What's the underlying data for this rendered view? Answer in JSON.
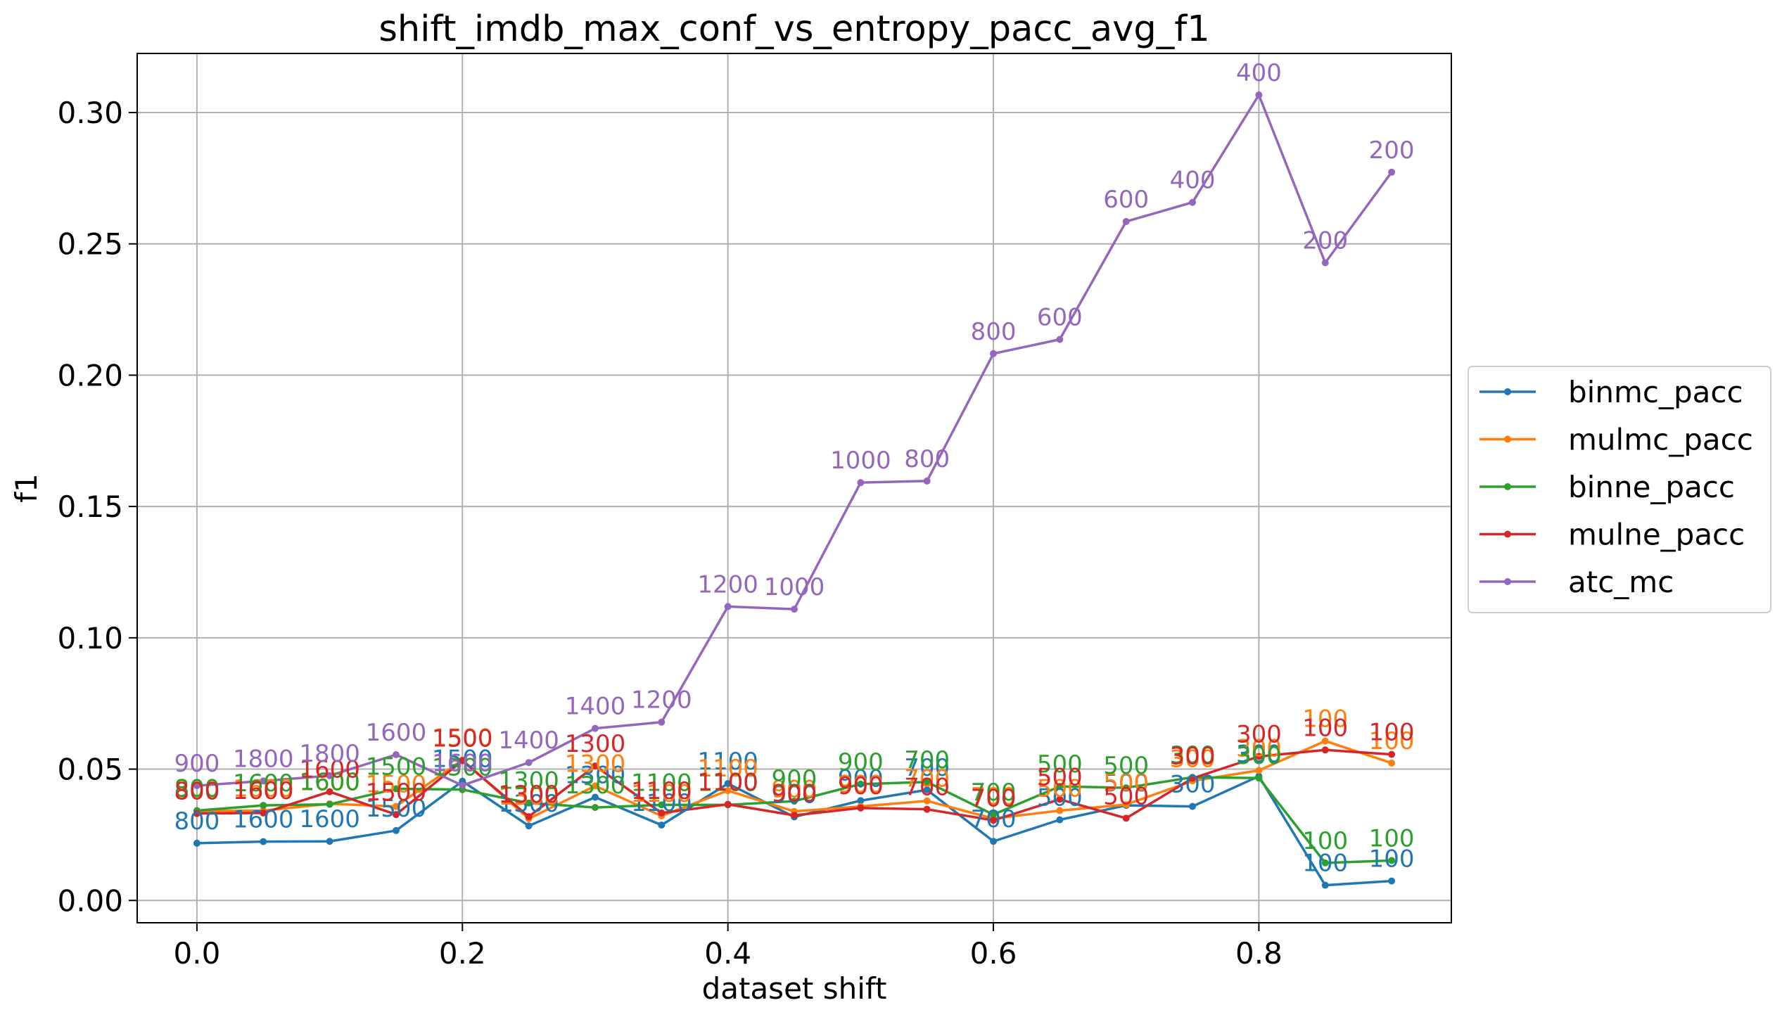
{
  "chart_data": {
    "type": "line",
    "title": "shift_imdb_max_conf_vs_entropy_pacc_avg_f1",
    "xlabel": "dataset shift",
    "ylabel": "f1",
    "xlim": [
      -0.045,
      0.945
    ],
    "ylim": [
      -0.0085,
      0.3225
    ],
    "xticks": [
      "0.0",
      "0.2",
      "0.4",
      "0.6",
      "0.8"
    ],
    "yticks": [
      "0.00",
      "0.05",
      "0.10",
      "0.15",
      "0.20",
      "0.25",
      "0.30"
    ],
    "grid": true,
    "legend_position": "center-right, outside the plot",
    "x": [
      0.0,
      0.05,
      0.1,
      0.15,
      0.2,
      0.25,
      0.3,
      0.35,
      0.4,
      0.45,
      0.5,
      0.55,
      0.6,
      0.65,
      0.7,
      0.75,
      0.8,
      0.85,
      0.9
    ],
    "series": [
      {
        "name": "binmc_pacc",
        "color": "#1f77b4",
        "values": [
          0.0218,
          0.0224,
          0.0225,
          0.0266,
          0.0454,
          0.0284,
          0.0393,
          0.0287,
          0.0445,
          0.0318,
          0.038,
          0.0421,
          0.0225,
          0.0307,
          0.0362,
          0.0358,
          0.0473,
          0.0058,
          0.0074
        ],
        "labels": [
          "800",
          "1600",
          "1600",
          "1500",
          "1500",
          "1300",
          "1300",
          "1100",
          "1100",
          "900",
          "900",
          "700",
          "700",
          "500",
          "500",
          "300",
          "300",
          "100",
          "100"
        ]
      },
      {
        "name": "mulmc_pacc",
        "color": "#ff7f0e",
        "values": [
          0.034,
          0.0342,
          0.0368,
          0.0358,
          0.0535,
          0.0311,
          0.0436,
          0.0322,
          0.0418,
          0.0339,
          0.0358,
          0.0379,
          0.0312,
          0.0342,
          0.0365,
          0.0455,
          0.0495,
          0.0607,
          0.0523
        ],
        "labels": [
          "800",
          "1600",
          "1600",
          "1500",
          "1500",
          "1300",
          "1300",
          "1100",
          "1100",
          "900",
          "900",
          "700",
          "700",
          "500",
          "500",
          "300",
          "300",
          "100",
          "100"
        ]
      },
      {
        "name": "binne_pacc",
        "color": "#2ca02c",
        "values": [
          0.0342,
          0.0362,
          0.0366,
          0.0425,
          0.0422,
          0.0371,
          0.0354,
          0.0364,
          0.0364,
          0.0378,
          0.0443,
          0.0451,
          0.0327,
          0.0434,
          0.0429,
          0.0469,
          0.0466,
          0.0143,
          0.0152
        ],
        "labels": [
          "800",
          "1600",
          "1600",
          "1500",
          "1500",
          "1300",
          "1300",
          "1100",
          "1100",
          "900",
          "900",
          "700",
          "700",
          "500",
          "500",
          "300",
          "300",
          "100",
          "100"
        ]
      },
      {
        "name": "mulne_pacc",
        "color": "#d62728",
        "values": [
          0.0331,
          0.0333,
          0.0414,
          0.0327,
          0.0532,
          0.0319,
          0.0512,
          0.0333,
          0.0366,
          0.0324,
          0.0352,
          0.0347,
          0.0305,
          0.0385,
          0.0313,
          0.0465,
          0.0548,
          0.0573,
          0.0556
        ],
        "labels": [
          "800",
          "1600",
          "1600",
          "1500",
          "1500",
          "1300",
          "1300",
          "1100",
          "1100",
          "900",
          "900",
          "700",
          "700",
          "500",
          "500",
          "300",
          "300",
          "100",
          "100"
        ]
      },
      {
        "name": "atc_mc",
        "color": "#9467bd",
        "values": [
          0.0437,
          0.0455,
          0.0475,
          0.0555,
          0.0438,
          0.0525,
          0.0655,
          0.0679,
          0.1119,
          0.1109,
          0.1591,
          0.1597,
          0.2082,
          0.2136,
          0.2585,
          0.2658,
          0.3067,
          0.2428,
          0.2773
        ],
        "labels": [
          "900",
          "1800",
          "1800",
          "1600",
          "1600",
          "1400",
          "1400",
          "1200",
          "1200",
          "1000",
          "1000",
          "800",
          "800",
          "600",
          "600",
          "400",
          "400",
          "200",
          "200"
        ]
      }
    ]
  }
}
